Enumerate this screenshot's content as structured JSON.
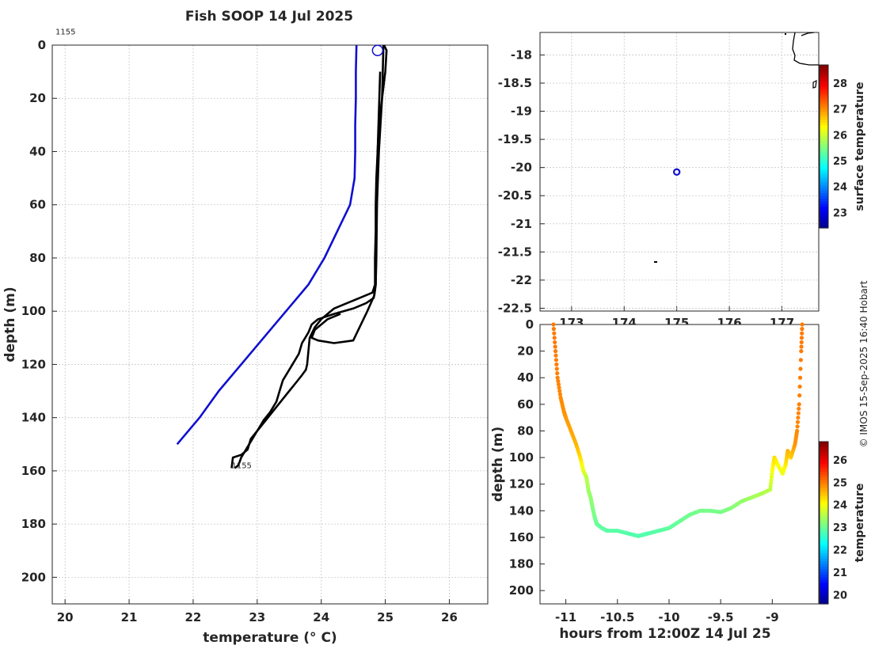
{
  "title": "Fish SOOP 14 Jul 2025",
  "copyright": "© IMOS 15-Sep-2025 16:40 Hobart",
  "colors": {
    "model_line": "#1010d0",
    "profile_line": "#000000",
    "marker": "#1010d0"
  },
  "chart_data": [
    {
      "id": "profile",
      "type": "line",
      "xlabel": "temperature (° C)",
      "ylabel": "depth (m)",
      "xlim": [
        19.8,
        26.6
      ],
      "ylim": [
        0,
        210
      ],
      "y_inverted": true,
      "xticks": [
        20,
        21,
        22,
        23,
        24,
        25,
        26
      ],
      "yticks": [
        0,
        20,
        40,
        60,
        80,
        100,
        120,
        140,
        160,
        180,
        200
      ],
      "grid": true,
      "annotations": [
        {
          "text": "1155",
          "x": 19.85,
          "y": -4
        },
        {
          "text": "1155",
          "x": 22.6,
          "y": 159
        }
      ],
      "marker": {
        "x": 24.88,
        "y": 2
      },
      "series": [
        {
          "key": "climatology",
          "color": "#1010d0",
          "x": [
            24.55,
            24.54,
            24.54,
            24.53,
            24.53,
            24.52,
            24.45,
            24.25,
            24.05,
            23.8,
            23.45,
            23.1,
            22.75,
            22.4,
            22.1,
            21.75
          ],
          "y": [
            0,
            10,
            20,
            30,
            40,
            50,
            60,
            70,
            80,
            90,
            100,
            110,
            120,
            130,
            140,
            150
          ]
        },
        {
          "key": "downcast",
          "color": "#000000",
          "x": [
            24.97,
            24.96,
            24.95,
            24.9,
            24.88,
            24.86,
            24.85,
            24.85,
            24.84,
            24.84,
            24.84,
            24.8,
            24.6,
            24.4,
            24.2,
            24.0,
            23.9,
            23.82,
            23.8,
            23.78,
            23.76,
            23.7,
            23.6,
            23.5,
            23.4,
            23.3,
            23.2,
            23.1,
            23.0,
            22.95,
            22.9,
            22.85,
            22.8,
            22.75,
            22.72,
            22.7,
            22.65
          ],
          "y": [
            0,
            10,
            20,
            30,
            40,
            50,
            60,
            70,
            80,
            85,
            90,
            93,
            95,
            97,
            99,
            103,
            106,
            110,
            115,
            120,
            122,
            124,
            127,
            130,
            133,
            136,
            139,
            142,
            145,
            147,
            149,
            151,
            153,
            155,
            157,
            158,
            159
          ]
        },
        {
          "key": "upcast",
          "color": "#000000",
          "x": [
            22.6,
            22.62,
            22.75,
            22.85,
            22.9,
            23.0,
            23.05,
            23.1,
            23.2,
            23.3,
            23.35,
            23.4,
            23.5,
            23.6,
            23.65,
            23.7,
            23.75,
            23.8,
            23.85,
            23.9,
            23.95,
            24.2,
            24.5,
            24.7,
            24.82,
            24.85,
            24.86,
            24.87,
            24.9,
            24.95,
            25.0,
            25.02,
            24.98
          ],
          "y": [
            159,
            155,
            154,
            152,
            148,
            145,
            143,
            141,
            138,
            134,
            130,
            126,
            122,
            118,
            116,
            112,
            110,
            108,
            105,
            104,
            103,
            101,
            99,
            97,
            95,
            90,
            80,
            60,
            40,
            20,
            10,
            2,
            0
          ]
        },
        {
          "key": "cast3",
          "color": "#000000",
          "x": [
            24.3,
            24.1,
            23.9,
            23.85,
            23.95,
            24.2,
            24.5,
            24.72,
            24.83,
            24.85,
            24.86,
            24.88,
            24.92
          ],
          "y": [
            101,
            103,
            107,
            110,
            111,
            112,
            111,
            100,
            94,
            90,
            70,
            40,
            10
          ]
        }
      ]
    },
    {
      "id": "map",
      "type": "scatter",
      "colorbar_label": "surface temperature",
      "xlim": [
        172.4,
        177.7
      ],
      "ylim": [
        -22.55,
        -17.6
      ],
      "xticks": [
        173,
        174,
        175,
        176,
        177
      ],
      "yticks": [
        -18,
        -18.5,
        -19,
        -19.5,
        -20,
        -20.5,
        -21,
        -21.5,
        -22,
        -22.5
      ],
      "grid": true,
      "colorbar_ticks": [
        23,
        24,
        25,
        26,
        27,
        28
      ],
      "colorbar_range": [
        22.4,
        28.7
      ],
      "marker": {
        "lon": 175.0,
        "lat": -20.08
      }
    },
    {
      "id": "transect",
      "type": "scatter",
      "xlabel": "hours from 12:00Z 14 Jul 25",
      "ylabel": "depth (m)",
      "colorbar_label": "temperature",
      "xlim": [
        -11.25,
        -8.55
      ],
      "ylim": [
        0,
        210
      ],
      "y_inverted": true,
      "xticks": [
        -11,
        -10.5,
        -10,
        -9.5,
        -9
      ],
      "yticks": [
        0,
        20,
        40,
        60,
        80,
        100,
        120,
        140,
        160,
        180,
        200
      ],
      "colorbar_ticks": [
        20,
        21,
        22,
        23,
        24,
        25,
        26
      ],
      "colorbar_range": [
        19.6,
        26.8
      ],
      "track": {
        "t": [
          -11.12,
          -11.1,
          -11.08,
          -11.05,
          -11.02,
          -11.0,
          -10.95,
          -10.9,
          -10.86,
          -10.83,
          -10.8,
          -10.78,
          -10.76,
          -10.74,
          -10.72,
          -10.7,
          -10.65,
          -10.6,
          -10.5,
          -10.4,
          -10.3,
          -10.25,
          -10.2,
          -10.1,
          -10.0,
          -9.9,
          -9.8,
          -9.7,
          -9.6,
          -9.5,
          -9.4,
          -9.3,
          -9.2,
          -9.1,
          -9.02,
          -9.0,
          -8.98,
          -8.95,
          -8.9,
          -8.87,
          -8.85,
          -8.82,
          -8.78,
          -8.76,
          -8.74,
          -8.72,
          -8.71
        ],
        "d": [
          0,
          20,
          40,
          55,
          65,
          70,
          80,
          90,
          100,
          110,
          115,
          125,
          130,
          138,
          145,
          150,
          153,
          155,
          155,
          157,
          159,
          158,
          157,
          155,
          153,
          148,
          143,
          140,
          140,
          141,
          138,
          133,
          130,
          127,
          124,
          110,
          100,
          105,
          112,
          105,
          95,
          100,
          90,
          80,
          60,
          20,
          0
        ],
        "temp": [
          25.0,
          25.0,
          24.95,
          24.9,
          24.85,
          24.8,
          24.7,
          24.6,
          24.3,
          23.9,
          23.6,
          23.4,
          23.3,
          23.2,
          23.1,
          23.0,
          22.95,
          22.9,
          22.9,
          22.85,
          22.85,
          22.85,
          22.85,
          22.9,
          22.95,
          23.0,
          23.05,
          23.1,
          23.1,
          23.1,
          23.2,
          23.3,
          23.4,
          23.5,
          23.6,
          24.0,
          24.3,
          24.1,
          23.9,
          24.2,
          24.6,
          24.4,
          24.8,
          24.9,
          24.95,
          25.0,
          25.0
        ]
      }
    }
  ]
}
